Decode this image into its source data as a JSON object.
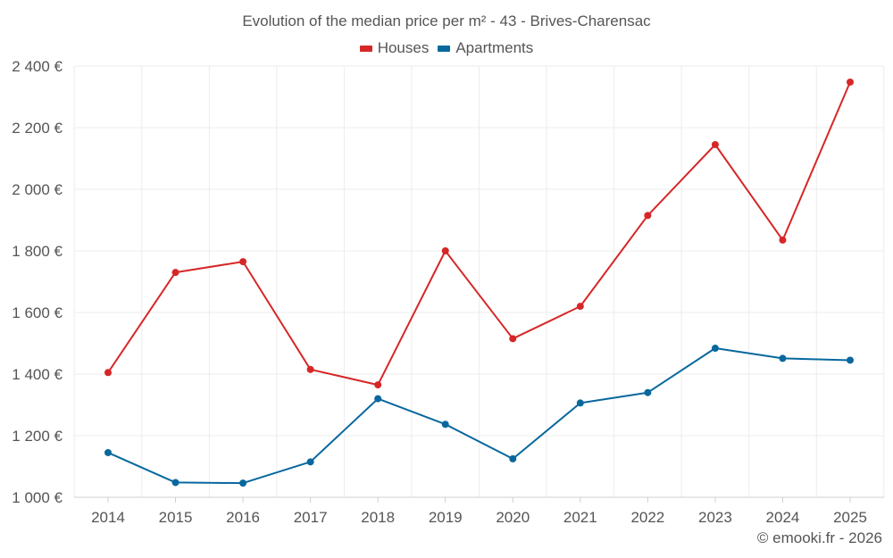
{
  "chart_data": {
    "type": "line",
    "title": "Evolution of the median price per m² - 43 - Brives-Charensac",
    "xlabel": "",
    "ylabel": "",
    "categories": [
      "2014",
      "2015",
      "2016",
      "2017",
      "2018",
      "2019",
      "2020",
      "2021",
      "2022",
      "2023",
      "2024",
      "2025"
    ],
    "series": [
      {
        "name": "Houses",
        "color": "#d62728",
        "values": [
          1405,
          1730,
          1765,
          1415,
          1365,
          1800,
          1515,
          1620,
          1915,
          2145,
          1835,
          2348
        ]
      },
      {
        "name": "Apartments",
        "color": "#08689e",
        "values": [
          1145,
          1048,
          1046,
          1115,
          1320,
          1237,
          1125,
          1306,
          1340,
          1484,
          1451,
          1445
        ]
      }
    ],
    "ylim": [
      1000,
      2400
    ],
    "yticks": [
      1000,
      1200,
      1400,
      1600,
      1800,
      2000,
      2200,
      2400
    ],
    "ytick_labels": [
      "1 000 €",
      "1 200 €",
      "1 400 €",
      "1 600 €",
      "1 800 €",
      "2 000 €",
      "2 200 €",
      "2 400 €"
    ],
    "grid": true,
    "legend_position": "top-center"
  },
  "credit": "© emooki.fr - 2026"
}
